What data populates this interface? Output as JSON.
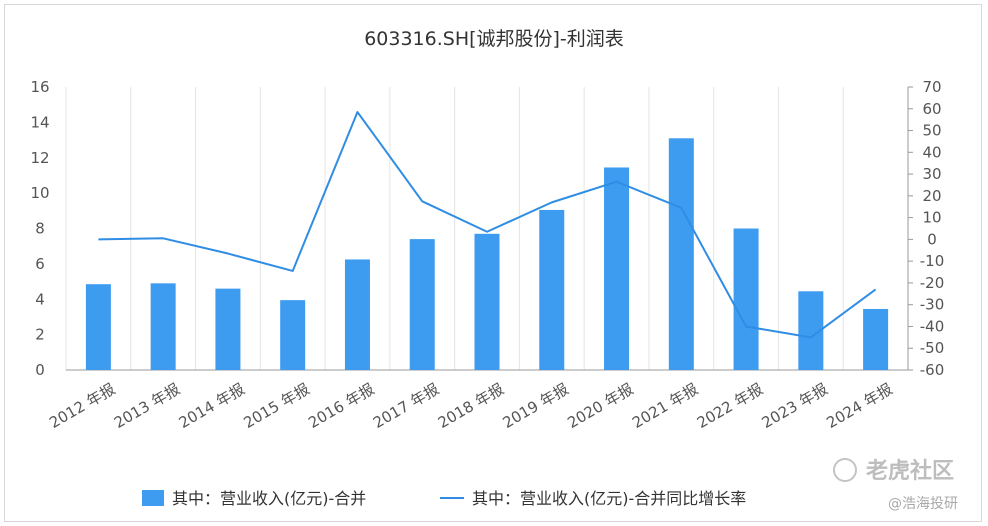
{
  "chart_data": {
    "type": "bar",
    "title": "603316.SH[诚邦股份]-利润表",
    "categories": [
      "2012 年报",
      "2013 年报",
      "2014 年报",
      "2015 年报",
      "2016 年报",
      "2017 年报",
      "2018 年报",
      "2019 年报",
      "2020 年报",
      "2021 年报",
      "2022 年报",
      "2023 年报",
      "2024 年报"
    ],
    "y_left": {
      "min": 0,
      "max": 16,
      "ticks": [
        "0",
        "2",
        "4",
        "6",
        "8",
        "10",
        "12",
        "14",
        "16"
      ]
    },
    "y_right": {
      "min": -60,
      "max": 70,
      "ticks": [
        "-60",
        "-50",
        "-40",
        "-30",
        "-20",
        "-10",
        "0",
        "10",
        "20",
        "30",
        "40",
        "50",
        "60",
        "70"
      ]
    },
    "series": [
      {
        "name": "其中：营业收入(亿元)-合并",
        "kind": "bar",
        "axis": "left",
        "color": "#3d9cf0",
        "values": [
          4.85,
          4.9,
          4.6,
          3.95,
          6.25,
          7.4,
          7.7,
          9.05,
          11.45,
          13.1,
          8.0,
          4.45,
          3.45
        ]
      },
      {
        "name": "其中：营业收入(亿元)-合并同比增长率",
        "kind": "line",
        "axis": "right",
        "color": "#2f8de4",
        "values": [
          0,
          0.5,
          -6.5,
          -14.5,
          58.5,
          17.5,
          3.5,
          17,
          26.5,
          14.5,
          -40,
          -45,
          -23
        ]
      }
    ],
    "grid": "vertical lines at each category",
    "legend_position": "bottom"
  },
  "watermark": {
    "brand": "老虎社区",
    "author": "@浩海投研"
  }
}
